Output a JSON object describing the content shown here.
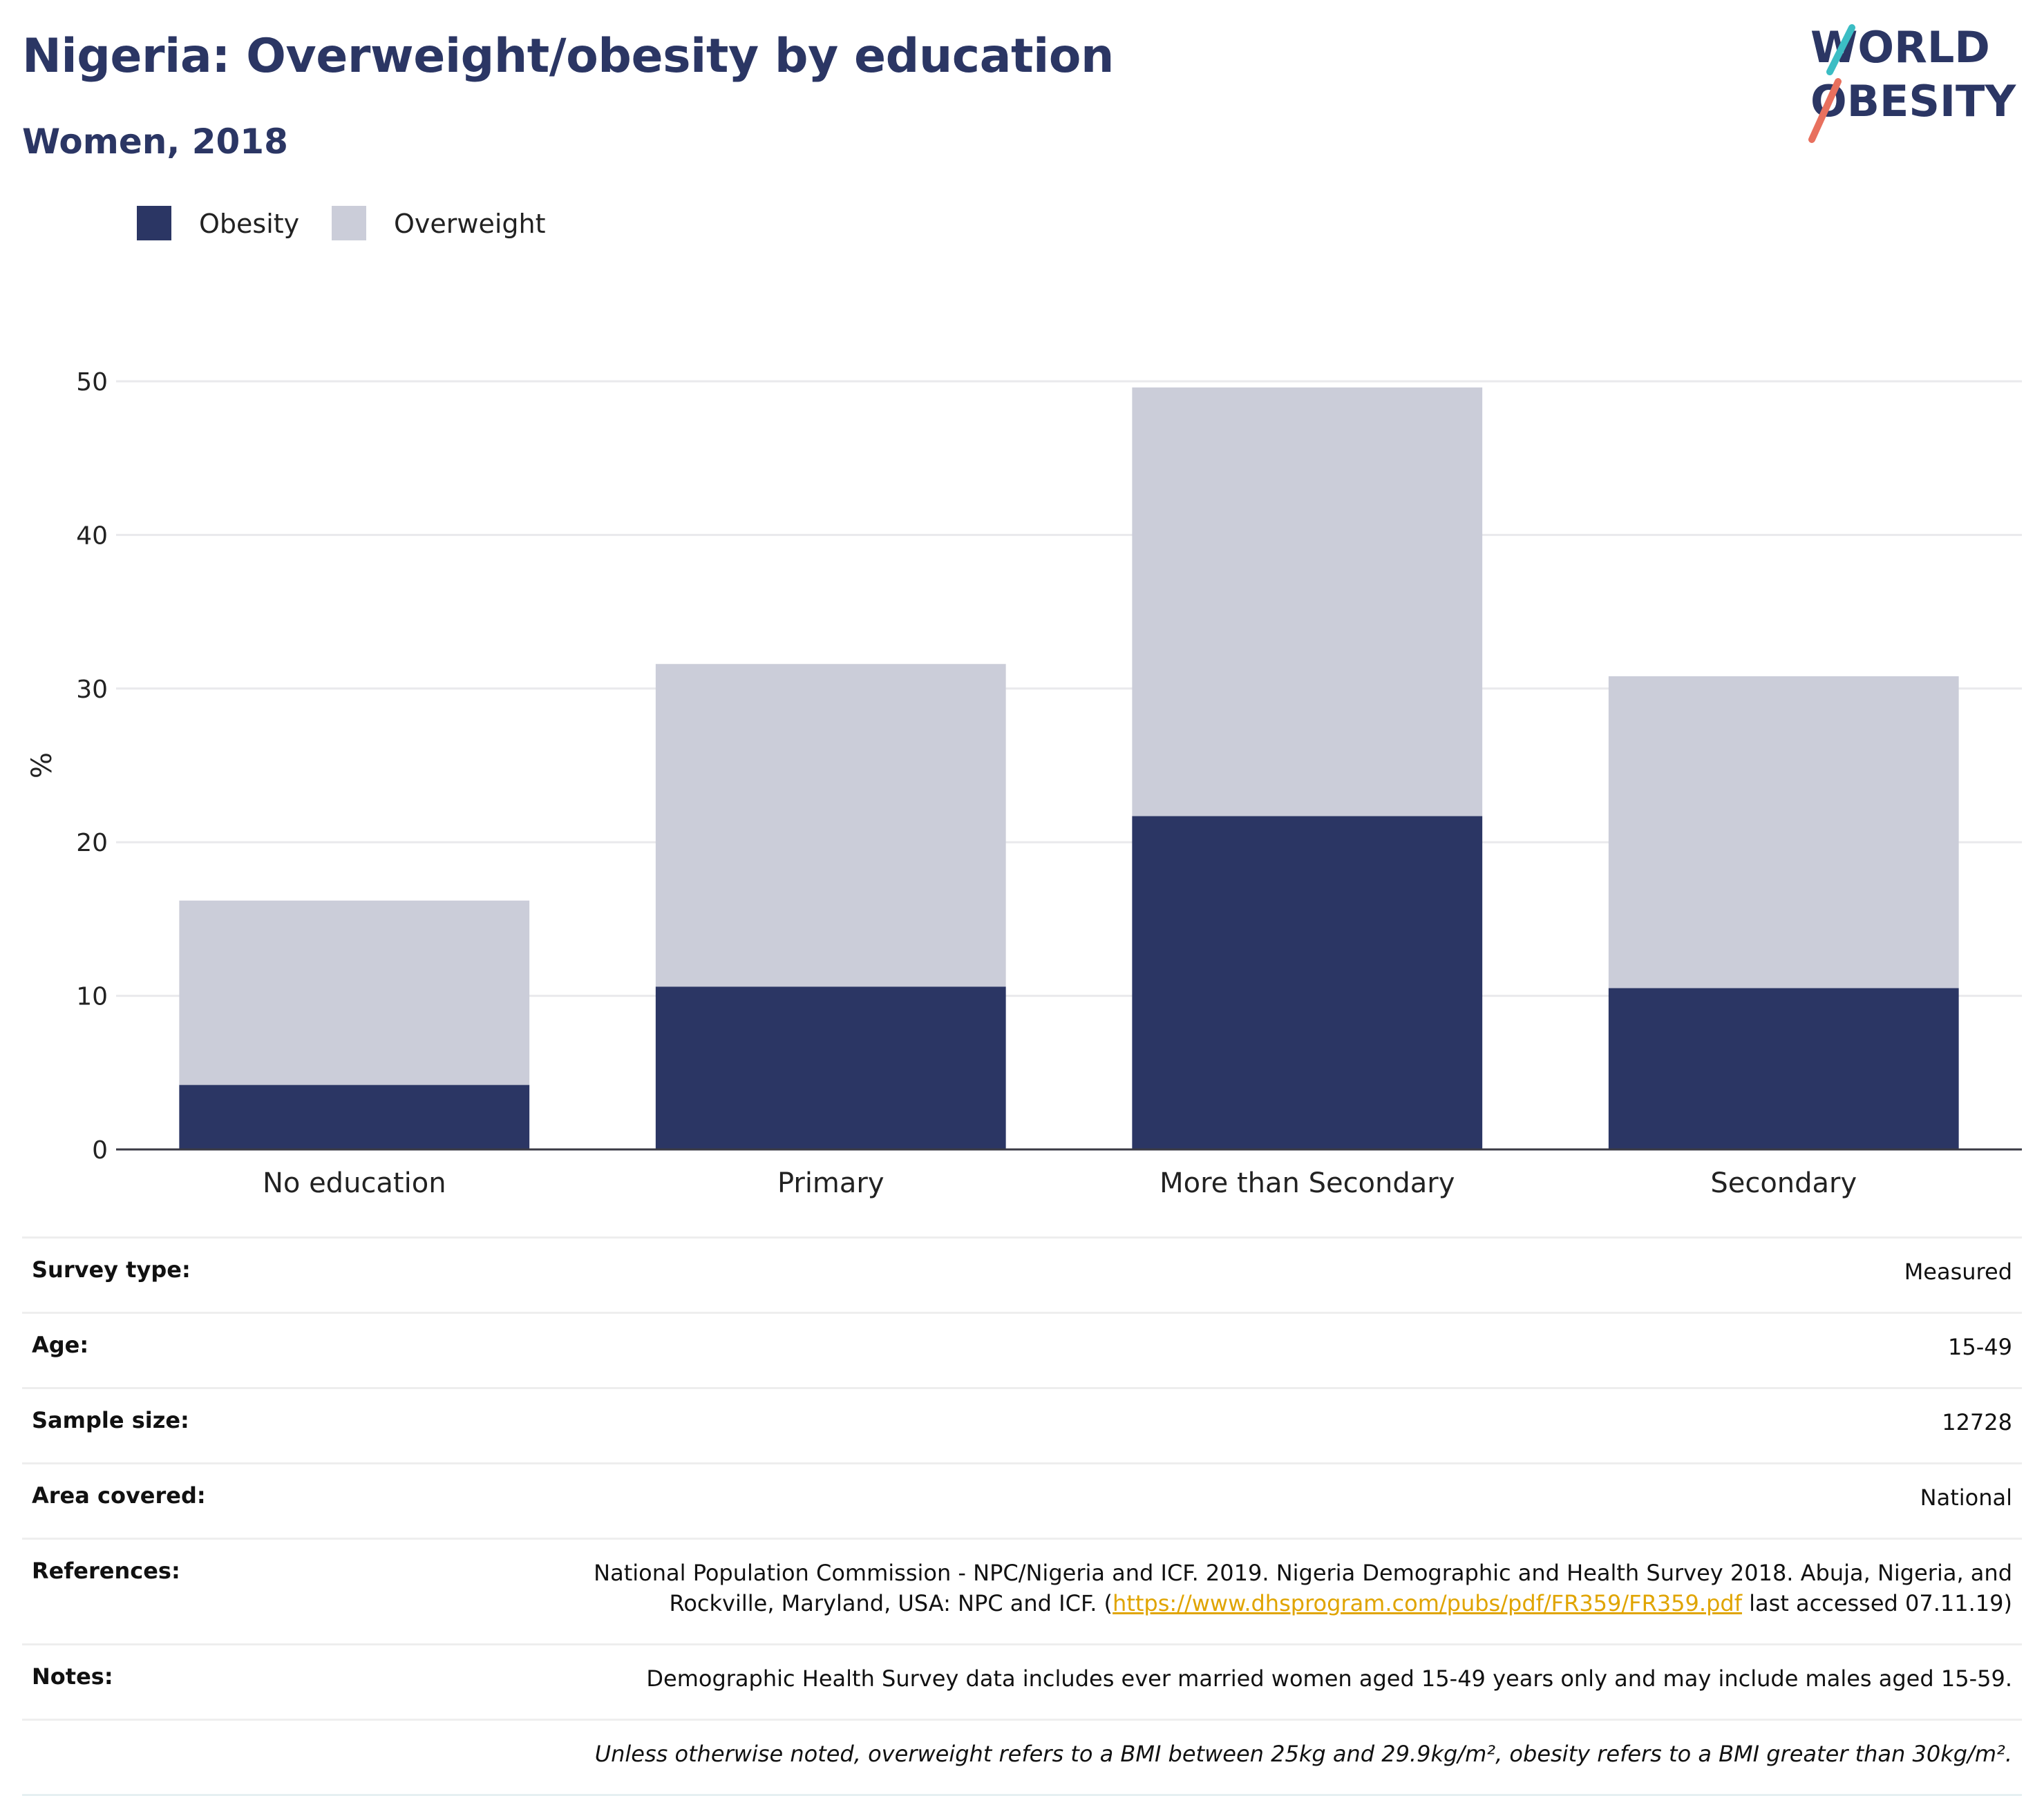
{
  "header": {
    "title": "Nigeria: Overweight/obesity by education",
    "subtitle": "Women, 2018",
    "logo_line1": "WORLD",
    "logo_line2": "OBESITY"
  },
  "legend": [
    {
      "label": "Obesity",
      "color": "#2b3664"
    },
    {
      "label": "Overweight",
      "color": "#cbcdd9"
    }
  ],
  "chart_data": {
    "type": "bar",
    "stacked": true,
    "categories": [
      "No education",
      "Primary",
      "More than Secondary",
      "Secondary"
    ],
    "series": [
      {
        "name": "Obesity",
        "color": "#2b3664",
        "values": [
          4.2,
          10.6,
          21.7,
          10.5
        ]
      },
      {
        "name": "Overweight",
        "color": "#cbcdd9",
        "values": [
          12.0,
          21.0,
          27.9,
          20.3
        ]
      }
    ],
    "ylabel": "%",
    "ylim": [
      0,
      50
    ],
    "yticks": [
      0,
      10,
      20,
      30,
      40,
      50
    ],
    "grid": true,
    "legend_position": "top-left"
  },
  "info": {
    "survey_type_label": "Survey type:",
    "survey_type": "Measured",
    "age_label": "Age:",
    "age": "15-49",
    "sample_size_label": "Sample size:",
    "sample_size": "12728",
    "area_label": "Area covered:",
    "area": "National",
    "references_label": "References:",
    "references_line1": "National Population Commission - NPC/Nigeria and ICF. 2019. Nigeria Demographic and Health Survey 2018. Abuja, Nigeria, and",
    "references_line2_pre": "Rockville, Maryland, USA: NPC and ICF. (",
    "references_link": "https://www.dhsprogram.com/pubs/pdf/FR359/FR359.pdf",
    "references_line2_post": " last accessed 07.11.19)",
    "notes_label": "Notes:",
    "notes": "Demographic Health Survey data includes ever married women aged 15-49 years only and may include males aged 15-59.",
    "definition": "Unless otherwise noted, overweight refers to a BMI between 25kg and 29.9kg/m², obesity refers to a BMI greater than 30kg/m²."
  }
}
